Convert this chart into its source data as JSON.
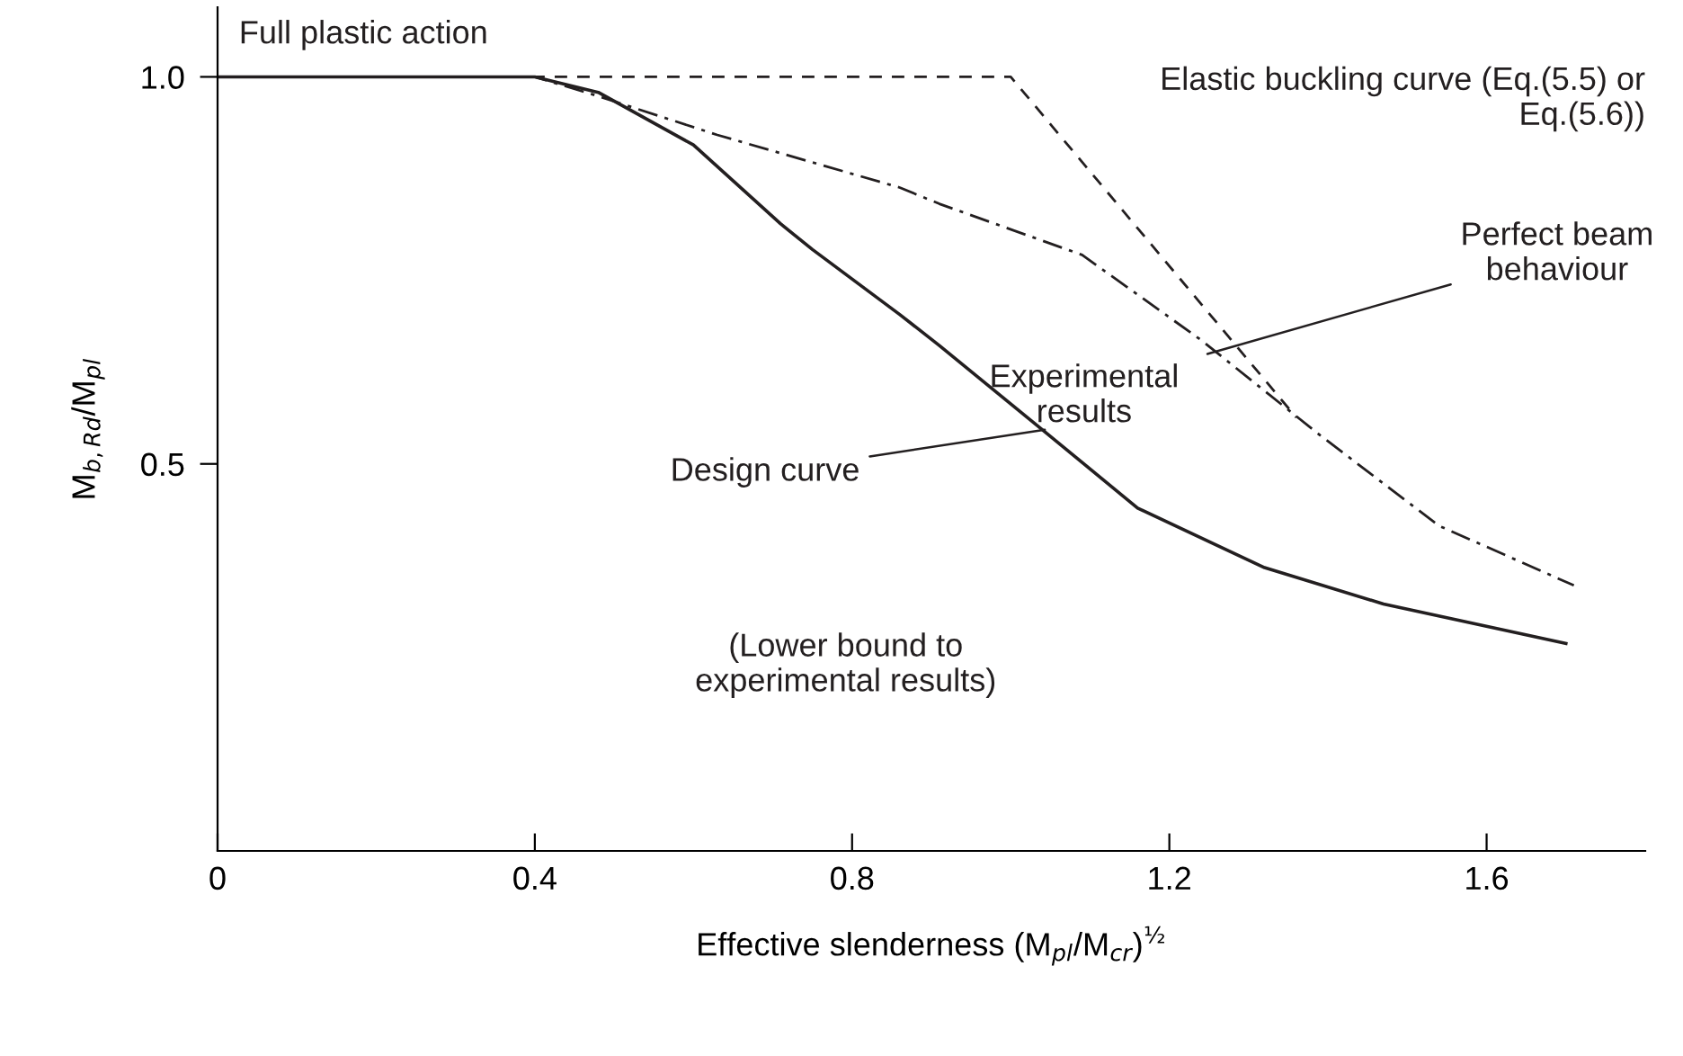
{
  "chart_data": {
    "type": "line",
    "xlabel": "Effective slenderness (M$_{pl}$/M$_{cr}$)$^{½}$",
    "ylabel": "M$_{b,Rd}$/M$_{pl}$",
    "xlim": [
      0,
      1.8
    ],
    "ylim": [
      0,
      1.09
    ],
    "xticks": [
      0,
      0.4,
      0.8,
      1.2,
      1.6
    ],
    "yticks": [
      {
        "value": 0.5,
        "label": "0.5"
      },
      {
        "value": 1.0,
        "label": "1.0"
      }
    ],
    "grid": false,
    "legend": false,
    "series": [
      {
        "color": "#231f20",
        "line_style": "dashed",
        "x": [
          0,
          1.0,
          1.36
        ],
        "values": [
          1.0,
          1.0,
          0.56
        ]
      },
      {
        "color": "#231f20",
        "line_style": "dashdot",
        "x": [
          0,
          0.4,
          0.48,
          0.63,
          0.86,
          0.91,
          1.09,
          1.24,
          1.39,
          1.54,
          1.71
        ],
        "values": [
          1.0,
          1.0,
          0.975,
          0.925,
          0.857,
          0.836,
          0.77,
          0.66,
          0.537,
          0.42,
          0.343
        ]
      },
      {
        "color": "#231f20",
        "line_style": "solid",
        "x": [
          0,
          0.4,
          0.48,
          0.6,
          0.71,
          0.75,
          0.86,
          0.91,
          1.04,
          1.16,
          1.32,
          1.47,
          1.7
        ],
        "values": [
          1.0,
          1.0,
          0.98,
          0.912,
          0.81,
          0.777,
          0.693,
          0.653,
          0.544,
          0.443,
          0.366,
          0.319,
          0.268
        ]
      }
    ],
    "annotations": [
      "Full plastic action",
      "Elastic buckling curve (Eq.(5.5) or\nEq.(5.6))",
      {
        "text": "Perfect beam\nbehaviour",
        "x": 1.248,
        "y": 0.642
      },
      "Experimental\nresults",
      {
        "text": "Design curve",
        "x": 1.043,
        "y": 0.544
      },
      "(Lower bound to\nexperimental results)"
    ]
  }
}
